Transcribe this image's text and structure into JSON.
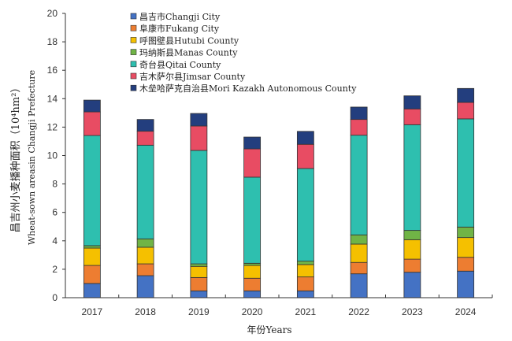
{
  "chart_data": {
    "type": "bar",
    "stacked": true,
    "title": "",
    "xlabel": "年份Years",
    "ylabel_cn": "昌吉州小麦播种面积（10⁴hm²）",
    "ylabel_en": "Wheat-sown areasin Changji Prefecture",
    "ylim": [
      0,
      20
    ],
    "yticks": [
      0,
      2,
      4,
      6,
      8,
      10,
      12,
      14,
      16,
      18,
      20
    ],
    "categories": [
      "2017",
      "2018",
      "2019",
      "2020",
      "2021",
      "2022",
      "2023",
      "2024"
    ],
    "legend_position": "top-left",
    "grid": false,
    "series": [
      {
        "name": "昌吉市Changji City",
        "color": "#4472C4",
        "values": [
          1.0,
          1.55,
          0.48,
          0.48,
          0.48,
          1.68,
          1.79,
          1.87
        ]
      },
      {
        "name": "阜康市Fukang City",
        "color": "#ED7D31",
        "values": [
          1.27,
          0.83,
          0.94,
          0.89,
          0.98,
          0.8,
          0.92,
          0.97
        ]
      },
      {
        "name": "呼图壁县Hutubi County",
        "color": "#F5C000",
        "values": [
          1.22,
          1.17,
          0.78,
          0.9,
          0.87,
          1.29,
          1.37,
          1.39
        ]
      },
      {
        "name": "玛纳斯县Manas County",
        "color": "#70B446",
        "values": [
          0.17,
          0.59,
          0.18,
          0.15,
          0.24,
          0.65,
          0.65,
          0.74
        ]
      },
      {
        "name": "奇台县Qitai County",
        "color": "#2EBFAF",
        "values": [
          7.75,
          6.59,
          7.98,
          6.06,
          6.52,
          7.01,
          7.44,
          7.61
        ]
      },
      {
        "name": "吉木萨尔县Jimsar County",
        "color": "#E84C63",
        "values": [
          1.66,
          0.98,
          1.72,
          1.99,
          1.7,
          1.11,
          1.11,
          1.16
        ]
      },
      {
        "name": "木垒哈萨克自治县Mori Kazakh Autonomous County",
        "color": "#233E7E",
        "values": [
          0.83,
          0.83,
          0.88,
          0.83,
          0.91,
          0.87,
          0.92,
          0.98
        ]
      }
    ]
  }
}
